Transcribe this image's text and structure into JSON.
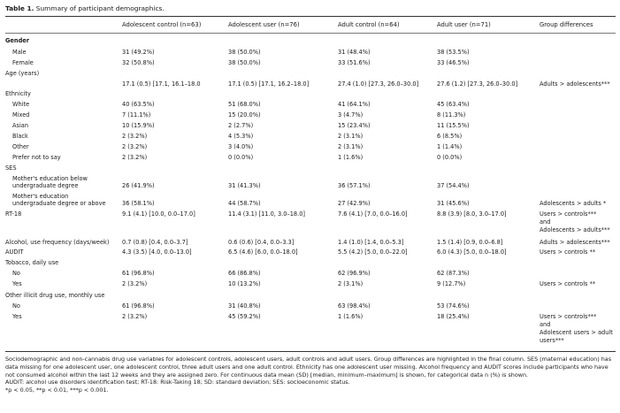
{
  "caption": {
    "label": "Table 1.",
    "text": "Summary of participant demographics."
  },
  "headers": [
    "",
    "Adolescent control (n=63)",
    "Adolescent user (n=76)",
    "Adult control (n=64)",
    "Adult user (n=71)",
    "Group differences"
  ],
  "rows": [
    {
      "label": "Gender",
      "bold": true,
      "cells": [
        "",
        "",
        "",
        "",
        ""
      ]
    },
    {
      "label": "Male",
      "indent": true,
      "cells": [
        "31 (49.2%)",
        "38 (50.0%)",
        "31 (48.4%)",
        "38 (53.5%)",
        ""
      ]
    },
    {
      "label": "Female",
      "indent": true,
      "cells": [
        "32 (50.8%)",
        "38 (50.0%)",
        "33 (51.6%)",
        "33 (46.5%)",
        ""
      ]
    },
    {
      "label": "Age (years)",
      "cells": [
        "",
        "",
        "",
        "",
        ""
      ]
    },
    {
      "label": "",
      "cells": [
        "17.1 (0.5) [17.1, 16.1–18.0",
        "17.1 (0.5) [17.1, 16.2–18.0]",
        "27.4 (1.0) [27.3, 26.0–30.0]",
        "27.6 (1.2) [27.3, 26.0–30.0]",
        "Adults > adolescents***"
      ]
    },
    {
      "label": "Ethnicity",
      "cells": [
        "",
        "",
        "",
        "",
        ""
      ]
    },
    {
      "label": "White",
      "indent": true,
      "cells": [
        "40 (63.5%)",
        "51 (68.0%)",
        "41 (64.1%)",
        "45 (63.4%)",
        ""
      ]
    },
    {
      "label": "Mixed",
      "indent": true,
      "cells": [
        "7 (11.1%)",
        "15 (20.0%)",
        "3 (4.7%)",
        "8 (11.3%)",
        ""
      ]
    },
    {
      "label": "Asian",
      "indent": true,
      "cells": [
        "10 (15.9%)",
        "2 (2.7%)",
        "15 (23.4%)",
        "11 (15.5%)",
        ""
      ]
    },
    {
      "label": "Black",
      "indent": true,
      "cells": [
        "2 (3.2%)",
        "4 (5.3%)",
        "2 (3.1%)",
        "6 (8.5%)",
        ""
      ]
    },
    {
      "label": "Other",
      "indent": true,
      "cells": [
        "2 (3.2%)",
        "3 (4.0%)",
        "2 (3.1%)",
        "1 (1.4%)",
        ""
      ]
    },
    {
      "label": "Prefer not to say",
      "indent": true,
      "cells": [
        "2 (3.2%)",
        "0 (0.0%)",
        "1 (1.6%)",
        "0 (0.0%)",
        ""
      ]
    },
    {
      "label": "SES",
      "cells": [
        "",
        "",
        "",
        "",
        ""
      ]
    },
    {
      "label": "Mother's education below",
      "label2": "undergraduate degree",
      "indent": true,
      "cells": [
        "26 (41.9%)",
        "31 (41.3%)",
        "36 (57.1%)",
        "37 (54.4%)",
        ""
      ]
    },
    {
      "label": "Mother's education",
      "label2": "undergraduate degree or above",
      "indent": true,
      "cells": [
        "36 (58.1%)",
        "44 (58.7%)",
        "27 (42.9%)",
        "31 (45.6%)",
        "Adolescents > adults *"
      ]
    },
    {
      "label": "RT-18",
      "cells": [
        "9.1 (4.1) [10.0, 0.0–17.0]",
        "11.4 (3.1) [11.0, 3.0–18.0]",
        "7.6 (4.1) [7.0, 0.0–16.0]",
        "8.8 (3.9) [8.0, 3.0–17.0]",
        "Users > controls***"
      ],
      "extra": [
        "and",
        "Adolescents > adults***"
      ]
    },
    {
      "label": "Alcohol, use frequency (days/week)",
      "cells": [
        "0.7 (0.8) [0.4, 0.0–3.7]",
        "0.6 (0.6) [0.4, 0.0–3.3]",
        "1.4 (1.0) [1.4, 0.0–5.3]",
        "1.5 (1.4) [0.9, 0.0–6.8]",
        "Adults > adolescents***"
      ]
    },
    {
      "label": "AUDIT",
      "cells": [
        "4.3 (3.5) [4.0, 0.0–13.0]",
        "6.5 (4.6) [6.0, 0.0–18.0]",
        "5.5 (4.2) [5.0, 0.0–22.0]",
        "6.0 (4.3) [5.0, 0.0–18.0]",
        "Users > controls **"
      ]
    },
    {
      "label": "Tobacco, daily use",
      "cells": [
        "",
        "",
        "",
        "",
        ""
      ]
    },
    {
      "label": "No",
      "indent": true,
      "cells": [
        "61 (96.8%)",
        "66 (86.8%)",
        "62 (96.9%)",
        "62 (87.3%)",
        ""
      ]
    },
    {
      "label": "Yes",
      "indent": true,
      "cells": [
        "2 (3.2%)",
        "10 (13.2%)",
        "2 (3.1%)",
        "9 (12.7%)",
        "Users > controls **"
      ]
    },
    {
      "label": "Other illicit drug use, monthly use",
      "cells": [
        "",
        "",
        "",
        "",
        ""
      ]
    },
    {
      "label": "No",
      "indent": true,
      "cells": [
        "61 (96.8%)",
        "31 (40.8%)",
        "63 (98.4%)",
        "53 (74.6%)",
        ""
      ]
    },
    {
      "label": "Yes",
      "indent": true,
      "cells": [
        "2 (3.2%)",
        "45 (59.2%)",
        "1 (1.6%)",
        "18 (25.4%)",
        "Users > controls***"
      ],
      "extra": [
        "and",
        "Adolescent users > adult",
        "users***"
      ]
    }
  ],
  "notes": [
    "Sociodemographic and non-cannabis drug use variables for adolescent controls, adolescent users, adult controls and adult users. Group differences are highlighted in the final column. SES (maternal education) has data missing for one adolescent user, one adolescent control, three adult users and one adult control. Ethnicity has one adolescent user missing. Alcohol frequency and AUDIT scores include participants who have not consumed alcohol within the last 12 weeks and they are assigned zero. For continuous data mean (SD) [median, minimum–maximum] is shown, for categorical data n (%) is shown.",
    "AUDIT: alcohol use disorders identification test; RT-18: Risk-Taking 18; SD: standard deviation; SES: socioeconomic status.",
    "*p < 0.05, **p < 0.01, ***p < 0.001."
  ]
}
